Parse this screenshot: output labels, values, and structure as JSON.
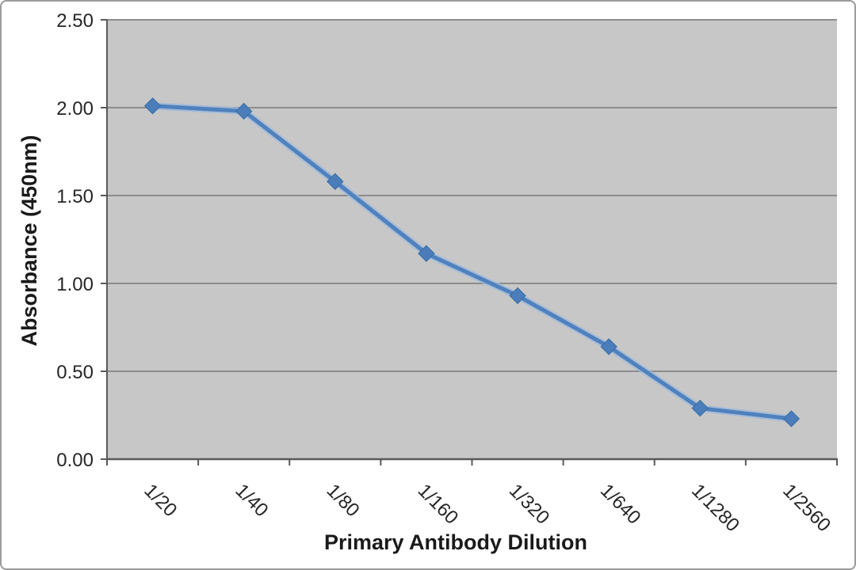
{
  "chart_data": {
    "type": "line",
    "title": "",
    "xlabel": "Primary Antibody Dilution",
    "ylabel": "Absorbance (450nm)",
    "categories": [
      "1/20",
      "1/40",
      "1/80",
      "1/160",
      "1/320",
      "1/640",
      "1/1280",
      "1/2560"
    ],
    "series": [
      {
        "name": "Absorbance (450nm)",
        "values": [
          2.01,
          1.98,
          1.58,
          1.17,
          0.93,
          0.64,
          0.29,
          0.23
        ]
      }
    ],
    "ylim": [
      0.0,
      2.5
    ],
    "ytick_step": 0.5,
    "ytick_labels": [
      "0.00",
      "0.50",
      "1.00",
      "1.50",
      "2.00",
      "2.50"
    ],
    "grid": true,
    "legend": false,
    "marker": "diamond",
    "colors": {
      "line": "#4f81bd",
      "line_highlight": "#9db9dc",
      "marker_fill": "#4a7dba",
      "marker_stroke": "#3a6ea5",
      "plot_bg": "#c7c7c7",
      "gridline": "#8c8c8c",
      "axis": "#595959",
      "text": "#262626"
    }
  }
}
